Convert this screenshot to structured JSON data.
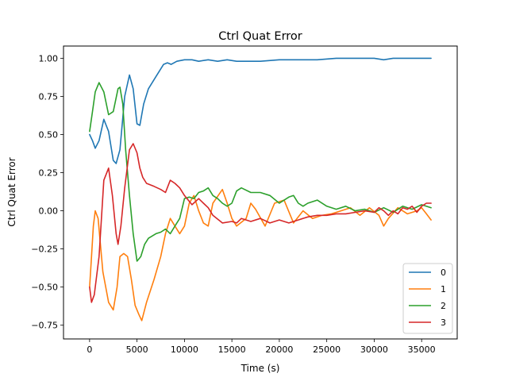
{
  "chart_data": {
    "type": "line",
    "title": "Ctrl Quat Error",
    "xlabel": "Time (s)",
    "ylabel": "Ctrl Quat Error",
    "xlim": [
      -2750,
      38750
    ],
    "ylim": [
      -0.84,
      1.08
    ],
    "xticks": [
      0,
      5000,
      10000,
      15000,
      20000,
      25000,
      30000,
      35000
    ],
    "xtick_labels": [
      "0",
      "5000",
      "10000",
      "15000",
      "20000",
      "25000",
      "30000",
      "35000"
    ],
    "yticks": [
      -0.75,
      -0.5,
      -0.25,
      0.0,
      0.25,
      0.5,
      0.75,
      1.0
    ],
    "ytick_labels": [
      "−0.75",
      "−0.50",
      "−0.25",
      "0.00",
      "0.25",
      "0.50",
      "0.75",
      "1.00"
    ],
    "grid": false,
    "legend_position": "lower-right",
    "series": [
      {
        "name": "0",
        "color": "#1f77b4",
        "x": [
          0,
          300,
          600,
          1000,
          1500,
          2000,
          2500,
          2800,
          3200,
          3700,
          4200,
          4600,
          5000,
          5300,
          5700,
          6200,
          7000,
          7800,
          8200,
          8600,
          9200,
          10000,
          10800,
          11500,
          12500,
          13500,
          14500,
          15500,
          16500,
          18000,
          20000,
          22000,
          24000,
          26000,
          28000,
          30000,
          31000,
          32000,
          34000,
          36000
        ],
        "y": [
          0.5,
          0.46,
          0.41,
          0.46,
          0.6,
          0.52,
          0.33,
          0.31,
          0.4,
          0.75,
          0.89,
          0.8,
          0.57,
          0.56,
          0.7,
          0.8,
          0.88,
          0.96,
          0.97,
          0.96,
          0.98,
          0.99,
          0.99,
          0.98,
          0.99,
          0.98,
          0.99,
          0.98,
          0.98,
          0.98,
          0.99,
          0.99,
          0.99,
          1.0,
          1.0,
          1.0,
          0.99,
          1.0,
          1.0,
          1.0
        ]
      },
      {
        "name": "1",
        "color": "#ff7f0e",
        "x": [
          0,
          200,
          400,
          600,
          900,
          1400,
          2000,
          2500,
          2900,
          3200,
          3600,
          4000,
          4400,
          4800,
          5200,
          5500,
          6000,
          6800,
          7500,
          8000,
          8500,
          9000,
          9500,
          10000,
          10500,
          11000,
          11500,
          12000,
          12500,
          13000,
          14000,
          14500,
          15000,
          15500,
          16500,
          17000,
          17500,
          18500,
          19500,
          20500,
          21500,
          22500,
          23500,
          24500,
          25500,
          26500,
          27500,
          28500,
          29500,
          30500,
          31000,
          31500,
          32500,
          33500,
          34500,
          35000,
          35500,
          36000
        ],
        "y": [
          -0.5,
          -0.3,
          -0.1,
          0.0,
          -0.05,
          -0.4,
          -0.6,
          -0.65,
          -0.5,
          -0.3,
          -0.28,
          -0.3,
          -0.45,
          -0.62,
          -0.68,
          -0.72,
          -0.6,
          -0.45,
          -0.3,
          -0.15,
          -0.05,
          -0.1,
          -0.15,
          -0.1,
          0.05,
          0.1,
          0.0,
          -0.08,
          -0.1,
          0.05,
          0.14,
          0.05,
          -0.05,
          -0.1,
          -0.05,
          0.05,
          0.01,
          -0.1,
          0.05,
          0.07,
          -0.08,
          0.0,
          -0.05,
          -0.03,
          -0.02,
          0.0,
          0.02,
          -0.03,
          0.02,
          -0.03,
          -0.1,
          -0.05,
          0.02,
          -0.02,
          0.0,
          0.02,
          -0.02,
          -0.06
        ]
      },
      {
        "name": "2",
        "color": "#2ca02c",
        "x": [
          0,
          300,
          600,
          1000,
          1500,
          2000,
          2500,
          3000,
          3200,
          3500,
          3800,
          4200,
          4600,
          5000,
          5400,
          5800,
          6200,
          7000,
          7500,
          8000,
          8500,
          9000,
          9500,
          10000,
          10500,
          11000,
          11500,
          12000,
          12500,
          13000,
          13500,
          14000,
          14500,
          15000,
          15500,
          16000,
          17000,
          18000,
          19000,
          20000,
          21000,
          21500,
          22000,
          22500,
          23000,
          24000,
          25000,
          26000,
          27000,
          28000,
          29000,
          30000,
          31000,
          32000,
          33000,
          34000,
          35000,
          36000
        ],
        "y": [
          0.52,
          0.65,
          0.78,
          0.84,
          0.78,
          0.63,
          0.65,
          0.8,
          0.81,
          0.7,
          0.4,
          0.1,
          -0.15,
          -0.33,
          -0.3,
          -0.22,
          -0.18,
          -0.15,
          -0.14,
          -0.12,
          -0.15,
          -0.1,
          -0.05,
          0.08,
          0.09,
          0.08,
          0.12,
          0.13,
          0.15,
          0.1,
          0.08,
          0.05,
          0.03,
          0.05,
          0.13,
          0.15,
          0.12,
          0.12,
          0.1,
          0.05,
          0.09,
          0.1,
          0.05,
          0.03,
          0.05,
          0.07,
          0.03,
          0.01,
          0.03,
          0.0,
          0.01,
          -0.01,
          0.02,
          -0.01,
          0.03,
          0.01,
          0.04,
          0.02
        ]
      },
      {
        "name": "3",
        "color": "#d62728",
        "x": [
          0,
          200,
          500,
          1000,
          1500,
          2000,
          2400,
          2800,
          3000,
          3300,
          3700,
          4200,
          4600,
          5000,
          5300,
          5600,
          6000,
          6800,
          7500,
          8000,
          8500,
          9000,
          9500,
          10000,
          10800,
          11500,
          12000,
          12500,
          13000,
          14000,
          15000,
          15500,
          16000,
          17000,
          18000,
          19000,
          20000,
          21000,
          22000,
          23000,
          24000,
          25000,
          26000,
          27000,
          28000,
          29000,
          30000,
          30500,
          31000,
          31500,
          32000,
          32500,
          33000,
          33500,
          34000,
          34500,
          35000,
          35500,
          36000
        ],
        "y": [
          -0.5,
          -0.6,
          -0.55,
          -0.3,
          0.2,
          0.28,
          0.1,
          -0.15,
          -0.22,
          -0.1,
          0.15,
          0.4,
          0.44,
          0.38,
          0.28,
          0.22,
          0.18,
          0.16,
          0.14,
          0.12,
          0.2,
          0.18,
          0.15,
          0.1,
          0.04,
          0.08,
          0.05,
          0.02,
          -0.03,
          -0.08,
          -0.07,
          -0.08,
          -0.05,
          -0.07,
          -0.05,
          -0.08,
          -0.06,
          -0.08,
          -0.06,
          -0.04,
          -0.03,
          -0.03,
          -0.02,
          -0.02,
          -0.01,
          0.0,
          -0.01,
          0.02,
          0.0,
          -0.03,
          0.0,
          -0.02,
          0.02,
          0.01,
          0.03,
          -0.01,
          0.03,
          0.05,
          0.05
        ]
      }
    ]
  }
}
